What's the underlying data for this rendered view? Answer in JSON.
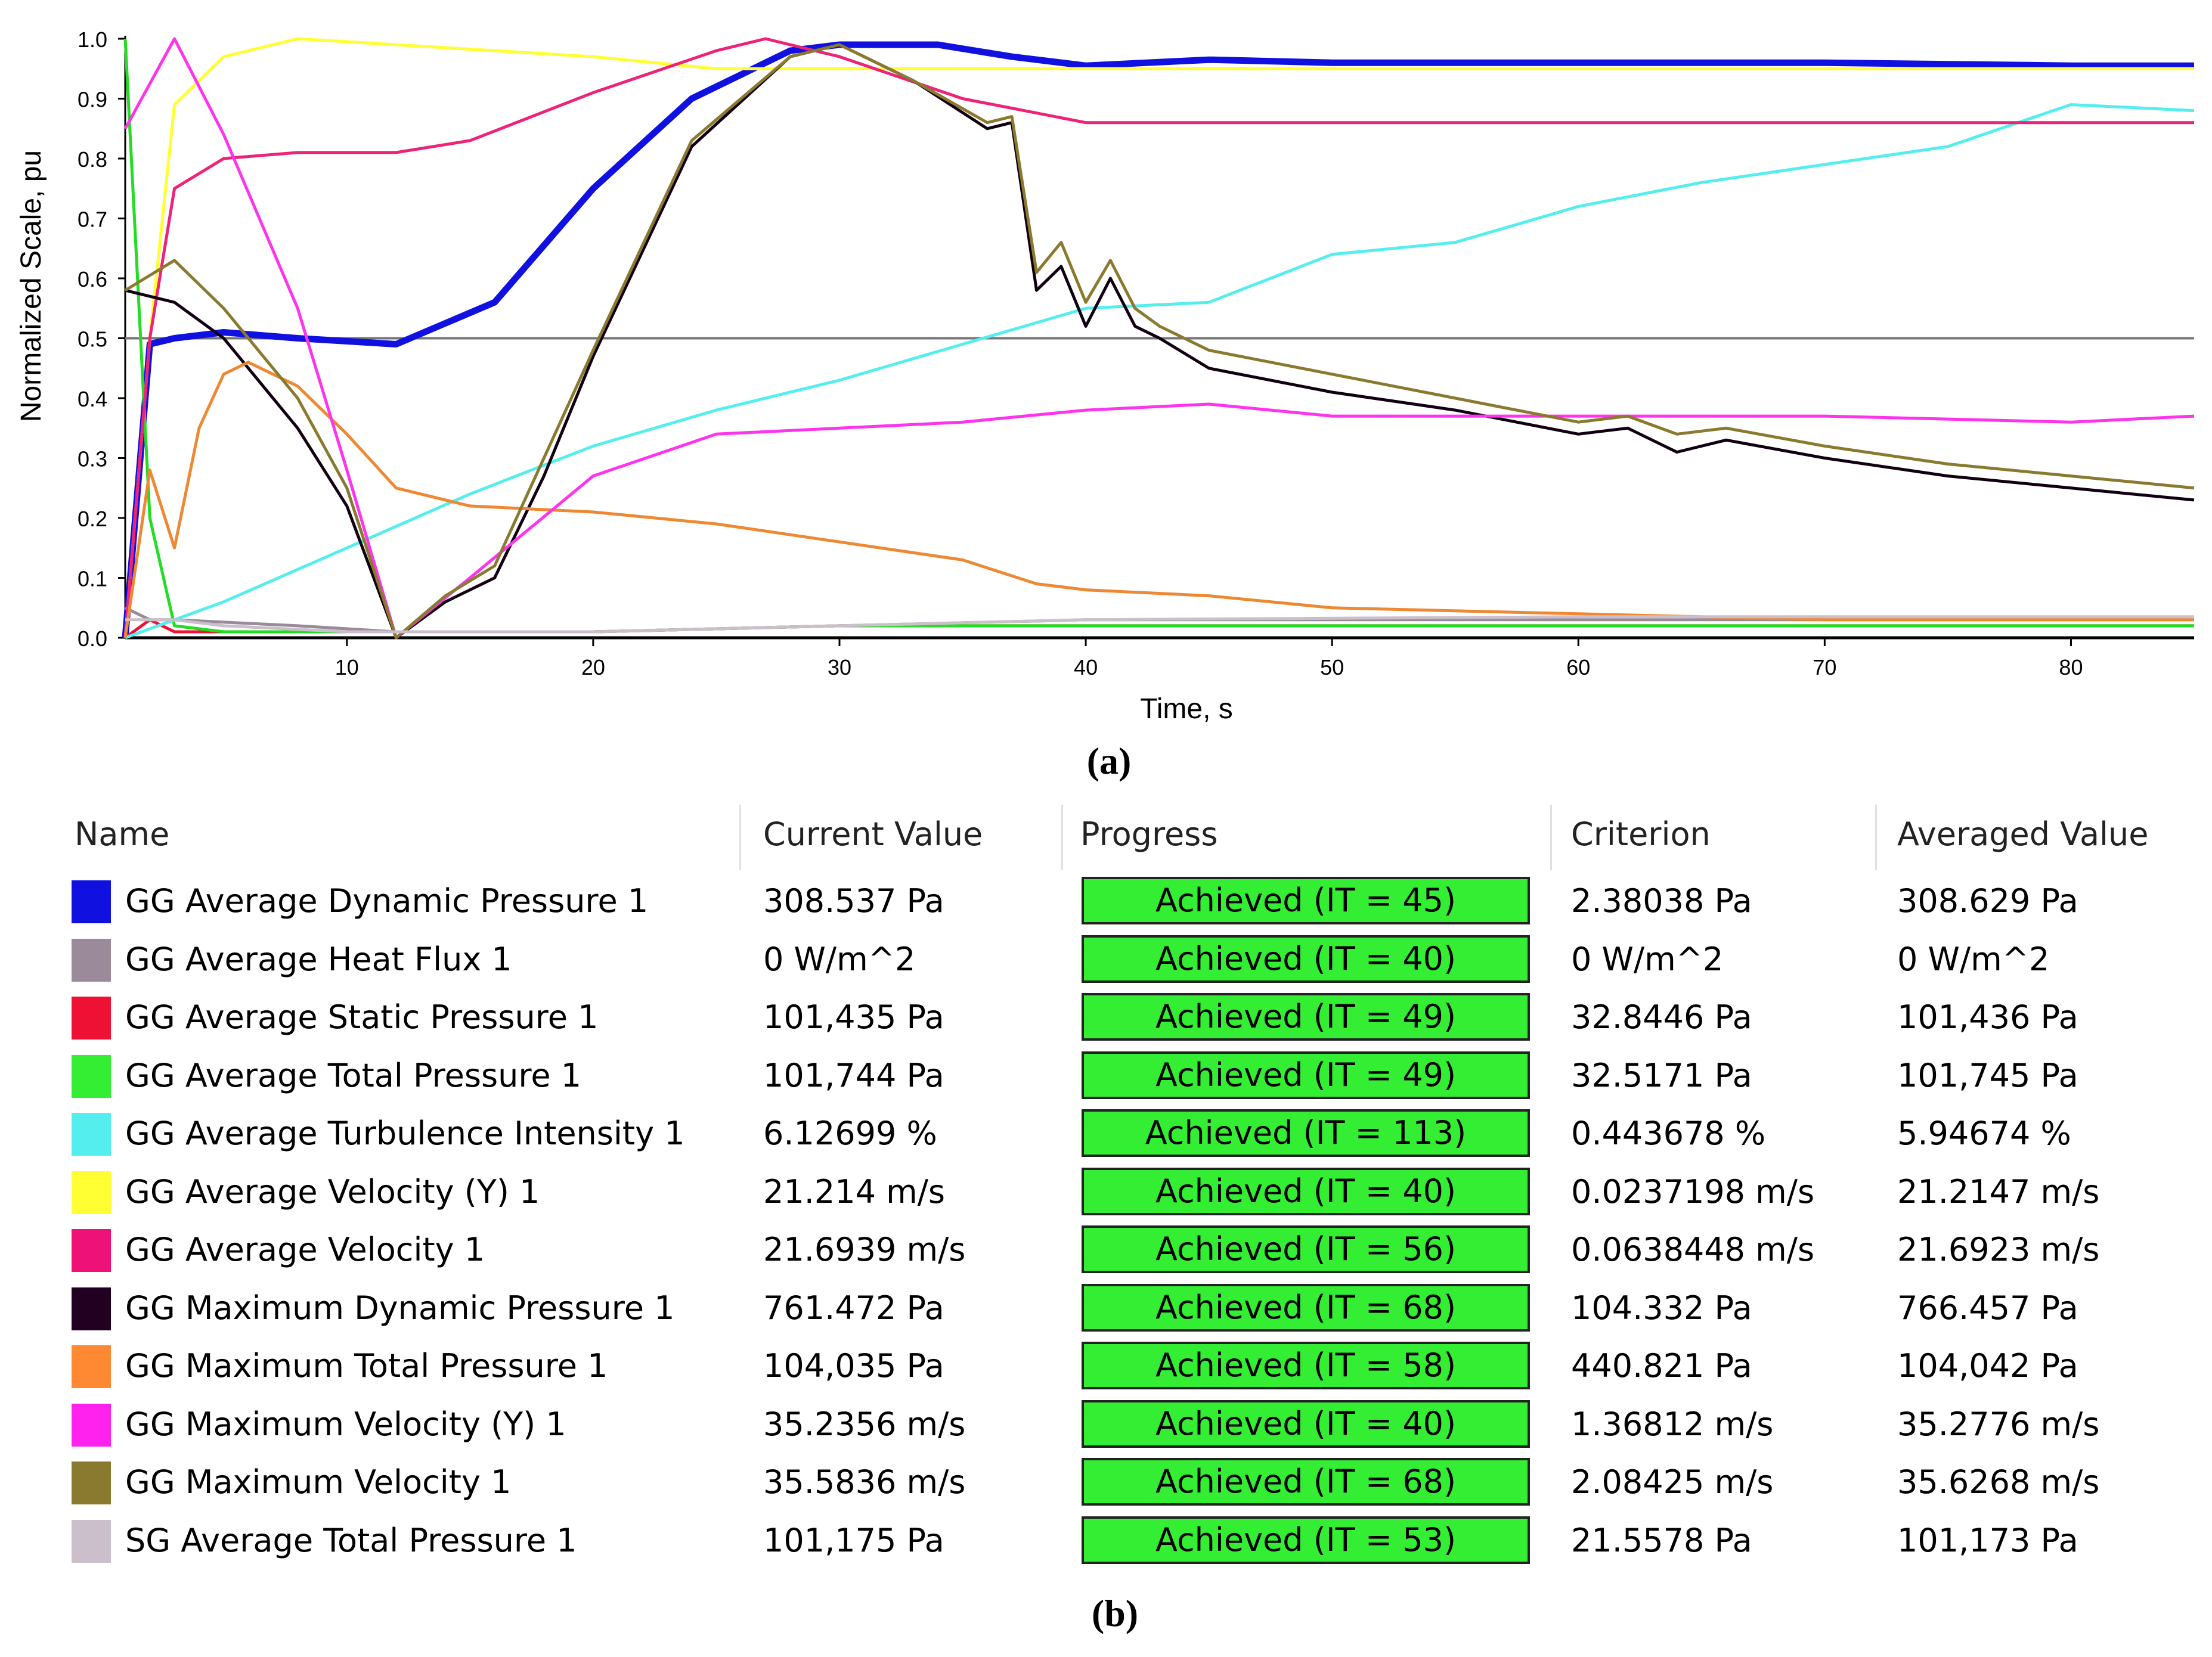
{
  "chart_data": {
    "type": "line",
    "xlabel": "Time, s",
    "ylabel": "Normalized Scale, pu",
    "xlim": [
      1,
      85
    ],
    "ylim": [
      0,
      1.0
    ],
    "xticks": [
      10,
      20,
      30,
      40,
      50,
      60,
      70,
      80
    ],
    "yticks": [
      0.0,
      0.1,
      0.2,
      0.3,
      0.4,
      0.5,
      0.6,
      0.7,
      0.8,
      0.9,
      1.0
    ],
    "reference_line": 0.5,
    "series": [
      {
        "name": "GG Average Dynamic Pressure 1",
        "color": "#1010e0",
        "x": [
          1,
          2,
          3,
          5,
          8,
          12,
          16,
          20,
          24,
          28,
          30,
          34,
          37,
          40,
          45,
          50,
          60,
          70,
          80,
          85
        ],
        "y": [
          0.0,
          0.49,
          0.5,
          0.51,
          0.5,
          0.49,
          0.56,
          0.75,
          0.9,
          0.98,
          0.99,
          0.99,
          0.97,
          0.955,
          0.965,
          0.96,
          0.96,
          0.96,
          0.955,
          0.955
        ]
      },
      {
        "name": "GG Average Heat Flux 1",
        "color": "#9a8a9a",
        "x": [
          1,
          2,
          3,
          8,
          12,
          20,
          30,
          40,
          60,
          85
        ],
        "y": [
          0.05,
          0.03,
          0.03,
          0.02,
          0.01,
          0.01,
          0.02,
          0.03,
          0.03,
          0.03
        ]
      },
      {
        "name": "GG Average Static Pressure 1",
        "color": "#ee1133",
        "x": [
          1,
          2,
          3,
          10,
          20,
          30,
          40,
          60,
          85
        ],
        "y": [
          0.0,
          0.03,
          0.01,
          0.01,
          0.01,
          0.02,
          0.02,
          0.02,
          0.02
        ]
      },
      {
        "name": "GG Average Total Pressure 1",
        "color": "#22dd22",
        "x": [
          1,
          2,
          3,
          5,
          10,
          20,
          30,
          40,
          60,
          85
        ],
        "y": [
          1.0,
          0.2,
          0.02,
          0.01,
          0.01,
          0.01,
          0.02,
          0.02,
          0.02,
          0.02
        ]
      },
      {
        "name": "GG Average Turbulence Intensity 1",
        "color": "#55eeee",
        "x": [
          1,
          5,
          10,
          15,
          20,
          25,
          30,
          35,
          40,
          45,
          50,
          55,
          60,
          65,
          70,
          75,
          80,
          85
        ],
        "y": [
          0.0,
          0.06,
          0.15,
          0.24,
          0.32,
          0.38,
          0.43,
          0.49,
          0.55,
          0.56,
          0.64,
          0.66,
          0.72,
          0.76,
          0.79,
          0.82,
          0.89,
          0.88
        ]
      },
      {
        "name": "GG Average Velocity (Y) 1",
        "color": "#ffff33",
        "x": [
          1,
          2,
          3,
          5,
          8,
          12,
          20,
          25,
          30,
          40,
          60,
          85
        ],
        "y": [
          0.0,
          0.5,
          0.89,
          0.97,
          1.0,
          0.99,
          0.97,
          0.95,
          0.95,
          0.95,
          0.95,
          0.95
        ]
      },
      {
        "name": "GG Average Velocity 1",
        "color": "#ee2277",
        "x": [
          1,
          2,
          3,
          5,
          8,
          12,
          15,
          20,
          25,
          27,
          30,
          35,
          40,
          50,
          60,
          70,
          85
        ],
        "y": [
          0.0,
          0.5,
          0.75,
          0.8,
          0.81,
          0.81,
          0.83,
          0.91,
          0.98,
          1.0,
          0.97,
          0.9,
          0.86,
          0.86,
          0.86,
          0.86,
          0.86
        ]
      },
      {
        "name": "GG Maximum Dynamic Pressure 1",
        "color": "#110011",
        "x": [
          1,
          3,
          5,
          8,
          10,
          12,
          14,
          16,
          18,
          20,
          24,
          28,
          30,
          33,
          36,
          37,
          38,
          39,
          40,
          41,
          42,
          43,
          45,
          50,
          55,
          60,
          62,
          64,
          66,
          70,
          75,
          80,
          85
        ],
        "y": [
          0.58,
          0.56,
          0.5,
          0.35,
          0.22,
          0.0,
          0.06,
          0.1,
          0.27,
          0.47,
          0.82,
          0.97,
          0.99,
          0.93,
          0.85,
          0.86,
          0.58,
          0.62,
          0.52,
          0.6,
          0.52,
          0.5,
          0.45,
          0.41,
          0.38,
          0.34,
          0.35,
          0.31,
          0.33,
          0.3,
          0.27,
          0.25,
          0.23
        ]
      },
      {
        "name": "GG Maximum Total Pressure 1",
        "color": "#ee8833",
        "x": [
          1,
          2,
          3,
          4,
          5,
          6,
          8,
          10,
          12,
          15,
          20,
          25,
          30,
          35,
          38,
          40,
          45,
          50,
          60,
          70,
          85
        ],
        "y": [
          0.0,
          0.28,
          0.15,
          0.35,
          0.44,
          0.46,
          0.42,
          0.34,
          0.25,
          0.22,
          0.21,
          0.19,
          0.16,
          0.13,
          0.09,
          0.08,
          0.07,
          0.05,
          0.04,
          0.03,
          0.03
        ]
      },
      {
        "name": "GG Maximum Velocity (Y) 1",
        "color": "#ff33ee",
        "x": [
          1,
          3,
          5,
          8,
          10,
          12,
          15,
          20,
          25,
          30,
          35,
          40,
          45,
          50,
          60,
          70,
          80,
          85
        ],
        "y": [
          0.85,
          1.0,
          0.84,
          0.55,
          0.28,
          0.0,
          0.1,
          0.27,
          0.34,
          0.35,
          0.36,
          0.38,
          0.39,
          0.37,
          0.37,
          0.37,
          0.36,
          0.37
        ]
      },
      {
        "name": "GG Maximum Velocity 1",
        "color": "#8a7a30",
        "x": [
          1,
          3,
          5,
          8,
          10,
          12,
          14,
          16,
          18,
          20,
          24,
          28,
          30,
          33,
          36,
          37,
          38,
          39,
          40,
          41,
          42,
          43,
          45,
          50,
          55,
          60,
          62,
          64,
          66,
          70,
          75,
          80,
          85
        ],
        "y": [
          0.58,
          0.63,
          0.55,
          0.4,
          0.25,
          0.0,
          0.07,
          0.12,
          0.3,
          0.48,
          0.83,
          0.97,
          0.99,
          0.93,
          0.86,
          0.87,
          0.61,
          0.66,
          0.56,
          0.63,
          0.55,
          0.52,
          0.48,
          0.44,
          0.4,
          0.36,
          0.37,
          0.34,
          0.35,
          0.32,
          0.29,
          0.27,
          0.25
        ]
      },
      {
        "name": "SG Average Total Pressure 1",
        "color": "#cbbfcb",
        "x": [
          1,
          3,
          5,
          10,
          12,
          20,
          30,
          40,
          60,
          85
        ],
        "y": [
          0.03,
          0.03,
          0.02,
          0.01,
          0.01,
          0.01,
          0.02,
          0.03,
          0.035,
          0.035
        ]
      }
    ]
  },
  "panel_labels": {
    "a": "(a)",
    "b": "(b)"
  },
  "table": {
    "headers": {
      "name": "Name",
      "current": "Current Value",
      "progress": "Progress",
      "criterion": "Criterion",
      "averaged": "Averaged Value"
    },
    "rows": [
      {
        "color": "#1010e0",
        "name": "GG Average Dynamic Pressure 1",
        "current": "308.537 Pa",
        "progress": "Achieved (IT = 45)",
        "criterion": "2.38038 Pa",
        "averaged": "308.629 Pa"
      },
      {
        "color": "#9a8a9a",
        "name": "GG Average Heat Flux 1",
        "current": "0 W/m^2",
        "progress": "Achieved (IT = 40)",
        "criterion": "0 W/m^2",
        "averaged": "0 W/m^2"
      },
      {
        "color": "#ee1133",
        "name": "GG Average Static Pressure 1",
        "current": "101,435 Pa",
        "progress": "Achieved (IT = 49)",
        "criterion": "32.8446 Pa",
        "averaged": "101,436 Pa"
      },
      {
        "color": "#33ee33",
        "name": "GG Average Total Pressure 1",
        "current": "101,744 Pa",
        "progress": "Achieved (IT = 49)",
        "criterion": "32.5171 Pa",
        "averaged": "101,745 Pa"
      },
      {
        "color": "#55eeee",
        "name": "GG Average Turbulence Intensity 1",
        "current": "6.12699 %",
        "progress": "Achieved (IT = 113)",
        "criterion": "0.443678 %",
        "averaged": "5.94674 %"
      },
      {
        "color": "#ffff33",
        "name": "GG Average Velocity (Y) 1",
        "current": "21.214 m/s",
        "progress": "Achieved (IT = 40)",
        "criterion": "0.0237198 m/s",
        "averaged": "21.2147 m/s"
      },
      {
        "color": "#ee1177",
        "name": "GG Average Velocity 1",
        "current": "21.6939 m/s",
        "progress": "Achieved (IT = 56)",
        "criterion": "0.0638448 m/s",
        "averaged": "21.6923 m/s"
      },
      {
        "color": "#220022",
        "name": "GG Maximum Dynamic Pressure 1",
        "current": "761.472 Pa",
        "progress": "Achieved (IT = 68)",
        "criterion": "104.332 Pa",
        "averaged": "766.457 Pa"
      },
      {
        "color": "#ff8833",
        "name": "GG Maximum Total Pressure 1",
        "current": "104,035 Pa",
        "progress": "Achieved (IT = 58)",
        "criterion": "440.821 Pa",
        "averaged": "104,042 Pa"
      },
      {
        "color": "#ff22ee",
        "name": "GG Maximum Velocity (Y) 1",
        "current": "35.2356 m/s",
        "progress": "Achieved (IT = 40)",
        "criterion": "1.36812 m/s",
        "averaged": "35.2776 m/s"
      },
      {
        "color": "#8a7a30",
        "name": "GG Maximum Velocity 1",
        "current": "35.5836 m/s",
        "progress": "Achieved (IT = 68)",
        "criterion": "2.08425 m/s",
        "averaged": "35.6268 m/s"
      },
      {
        "color": "#cbbfcb",
        "name": "SG Average Total Pressure 1",
        "current": "101,175 Pa",
        "progress": "Achieved (IT = 53)",
        "criterion": "21.5578 Pa",
        "averaged": "101,173 Pa"
      }
    ]
  }
}
